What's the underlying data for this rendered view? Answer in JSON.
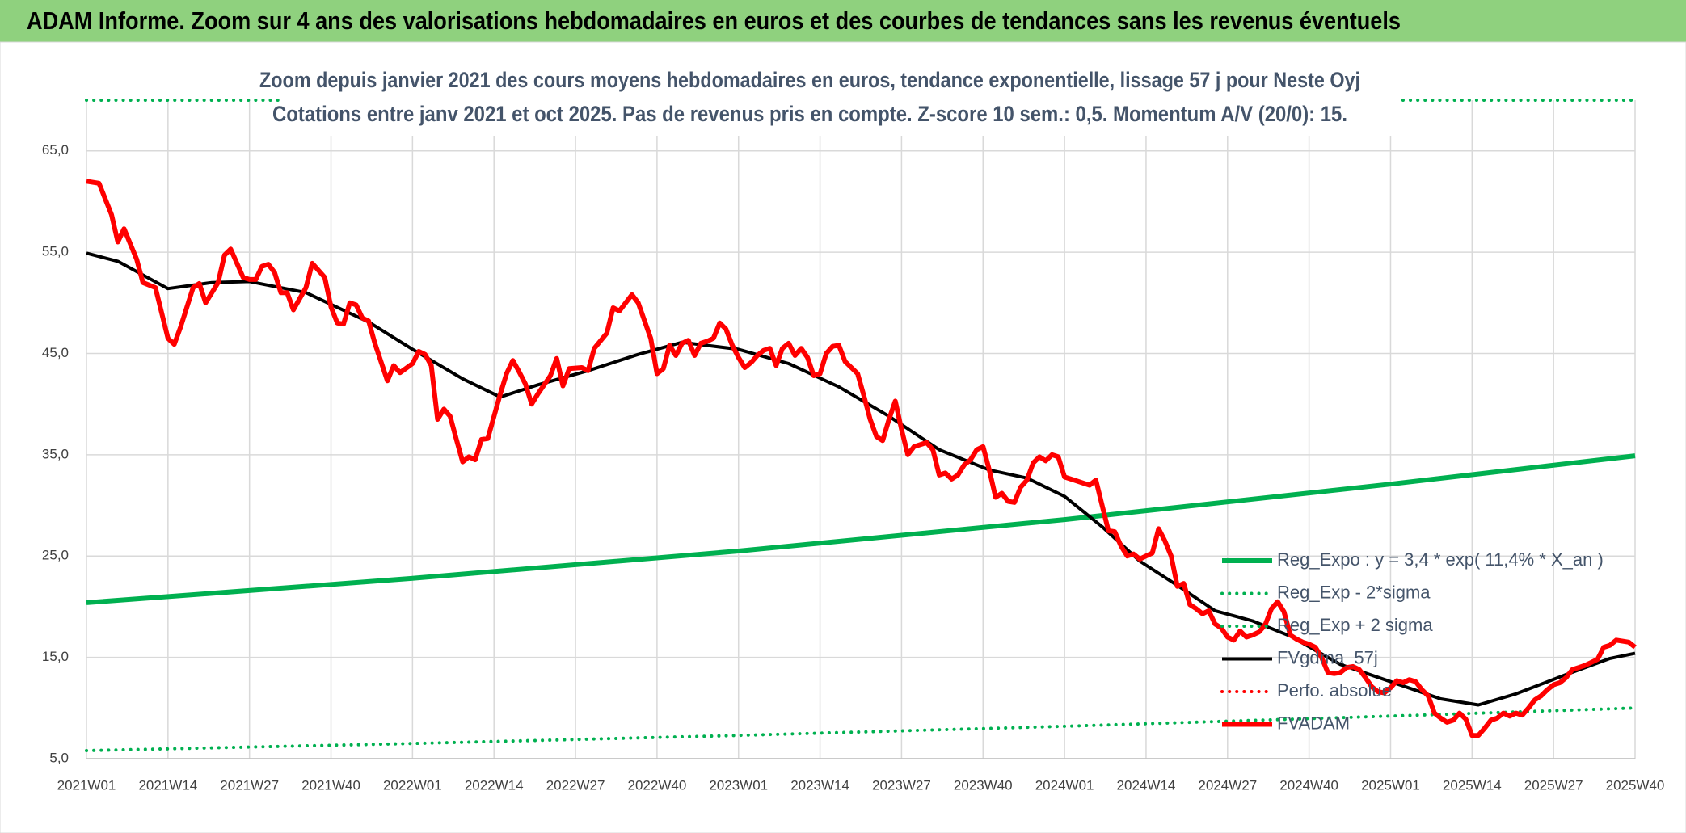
{
  "header": "ADAM Informe. Zoom sur 4 ans des valorisations hebdomadaires en euros et des courbes de tendances sans les revenus éventuels",
  "chart_data": {
    "type": "line",
    "title": "Zoom depuis janvier 2021 des cours moyens hebdomadaires en euros, tendance exponentielle, lissage 57 j pour Neste Oyj",
    "subtitle": "Cotations entre janv 2021 et oct 2025. Pas de revenus pris en compte. Z-score 10 sem.: 0,5. Momentum A/V (20/0): 15.",
    "xlim": [
      0,
      247
    ],
    "xticks": [
      {
        "value": 0,
        "label": "2021W01"
      },
      {
        "value": 13,
        "label": "2021W14"
      },
      {
        "value": 26,
        "label": "2021W27"
      },
      {
        "value": 39,
        "label": "2021W40"
      },
      {
        "value": 52,
        "label": "2022W01"
      },
      {
        "value": 65,
        "label": "2022W14"
      },
      {
        "value": 78,
        "label": "2022W27"
      },
      {
        "value": 91,
        "label": "2022W40"
      },
      {
        "value": 104,
        "label": "2023W01"
      },
      {
        "value": 117,
        "label": "2023W14"
      },
      {
        "value": 130,
        "label": "2023W27"
      },
      {
        "value": 143,
        "label": "2023W40"
      },
      {
        "value": 156,
        "label": "2024W01"
      },
      {
        "value": 169,
        "label": "2024W14"
      },
      {
        "value": 182,
        "label": "2024W27"
      },
      {
        "value": 195,
        "label": "2024W40"
      },
      {
        "value": 208,
        "label": "2025W01"
      },
      {
        "value": 221,
        "label": "2025W14"
      },
      {
        "value": 234,
        "label": "2025W27"
      },
      {
        "value": 247,
        "label": "2025W40"
      }
    ],
    "ylim": [
      5,
      70
    ],
    "yticks": [
      {
        "value": 5,
        "label": "5,0"
      },
      {
        "value": 15,
        "label": "15,0"
      },
      {
        "value": 25,
        "label": "25,0"
      },
      {
        "value": 35,
        "label": "35,0"
      },
      {
        "value": 45,
        "label": "45,0"
      },
      {
        "value": 55,
        "label": "55,0"
      },
      {
        "value": 65,
        "label": "65,0"
      }
    ],
    "grid": true,
    "legend": "right",
    "series": [
      {
        "name": "Reg_Expo : y = 3,4 * exp( 11,4% *  X_an )",
        "color": "#00b050",
        "line_style": "solid",
        "x": [
          0,
          52,
          104,
          156,
          208,
          247
        ],
        "values": [
          20.4,
          22.8,
          25.5,
          28.6,
          32.1,
          34.9
        ]
      },
      {
        "name": "Reg_Exp - 2*sigma",
        "color": "#00b050",
        "line_style": "dotted",
        "x": [
          0,
          52,
          104,
          156,
          208,
          247
        ],
        "values": [
          5.8,
          6.5,
          7.3,
          8.2,
          9.2,
          10.0
        ]
      },
      {
        "name": "Reg_Exp + 2 sigma",
        "color": "#00b050",
        "line_style": "dotted",
        "x": [
          0,
          247
        ],
        "values": [
          70,
          70
        ]
      },
      {
        "name": "FVgdma_57j",
        "color": "#000000",
        "line_style": "solid",
        "x": [
          0,
          5,
          13,
          20,
          26,
          35,
          45,
          52,
          60,
          66,
          72,
          80,
          88,
          95,
          104,
          112,
          120,
          128,
          136,
          144,
          150,
          156,
          162,
          168,
          174,
          180,
          186,
          192,
          200,
          208,
          216,
          222,
          228,
          236,
          243,
          247
        ],
        "values": [
          54.9,
          54.1,
          51.4,
          52.0,
          52.1,
          51.0,
          48.1,
          45.4,
          42.5,
          40.7,
          41.9,
          43.3,
          44.9,
          46.1,
          45.4,
          44.0,
          41.7,
          38.8,
          35.5,
          33.5,
          32.7,
          30.9,
          27.9,
          24.5,
          22.1,
          19.6,
          18.6,
          17.1,
          14.3,
          12.6,
          10.9,
          10.3,
          11.4,
          13.3,
          14.9,
          15.4
        ]
      },
      {
        "name": "Perfo. absolue",
        "color": "#ff0000",
        "line_style": "dotted",
        "x": [],
        "values": []
      },
      {
        "name": "FVADAM",
        "color": "#ff0000",
        "line_style": "solid",
        "x": [
          0,
          2,
          4,
          5,
          6,
          8,
          9,
          11,
          13,
          14,
          15,
          17,
          18,
          19,
          21,
          22,
          23,
          25,
          26,
          27,
          28,
          29,
          30,
          31,
          32,
          33,
          35,
          36,
          38,
          39,
          40,
          41,
          42,
          43,
          44,
          45,
          46,
          48,
          49,
          50,
          52,
          53,
          54,
          55,
          56,
          57,
          58,
          59,
          60,
          61,
          62,
          63,
          64,
          66,
          67,
          68,
          69,
          70,
          71,
          72,
          74,
          75,
          76,
          77,
          79,
          80,
          81,
          83,
          84,
          85,
          87,
          88,
          90,
          91,
          92,
          93,
          94,
          95,
          96,
          97,
          98,
          99,
          100,
          101,
          102,
          103,
          104,
          105,
          106,
          107,
          108,
          109,
          110,
          111,
          112,
          113,
          114,
          115,
          116,
          117,
          118,
          119,
          120,
          121,
          122,
          123,
          124,
          125,
          126,
          127,
          128,
          129,
          130,
          131,
          132,
          134,
          135,
          136,
          137,
          138,
          139,
          140,
          141,
          142,
          143,
          144,
          145,
          146,
          147,
          148,
          149,
          150,
          151,
          152,
          153,
          154,
          155,
          156,
          157,
          158,
          159,
          160,
          161,
          162,
          163,
          164,
          165,
          166,
          167,
          168,
          169,
          170,
          171,
          172,
          173,
          174,
          175,
          176,
          177,
          178,
          179,
          180,
          181,
          182,
          183,
          184,
          185,
          186,
          187,
          188,
          189,
          190,
          191,
          192,
          193,
          194,
          195,
          196,
          197,
          198,
          199,
          200,
          201,
          202,
          203,
          204,
          205,
          206,
          207,
          208,
          209,
          210,
          211,
          212,
          213,
          214,
          215,
          216,
          217,
          218,
          219,
          220,
          221,
          222,
          223,
          224,
          225,
          226,
          227,
          228,
          229,
          230,
          231,
          232,
          233,
          234,
          235,
          236,
          237,
          238,
          239,
          240,
          241,
          242,
          243,
          244,
          245,
          246,
          247
        ],
        "values": [
          62.0,
          61.8,
          58.7,
          56.0,
          57.3,
          54.3,
          52.0,
          51.5,
          46.5,
          45.9,
          47.6,
          51.5,
          51.9,
          50.0,
          52.0,
          54.7,
          55.3,
          52.5,
          52.3,
          52.3,
          53.6,
          53.8,
          53.0,
          51.0,
          51.0,
          49.3,
          51.5,
          53.9,
          52.5,
          49.6,
          48.0,
          47.9,
          50.0,
          49.8,
          48.5,
          48.2,
          46.0,
          42.3,
          43.8,
          43.1,
          44.0,
          45.2,
          44.9,
          43.8,
          38.5,
          39.5,
          38.8,
          36.5,
          34.3,
          34.8,
          34.5,
          36.5,
          36.6,
          41.0,
          43.0,
          44.3,
          43.2,
          42.0,
          40.0,
          41.0,
          42.8,
          44.5,
          41.8,
          43.5,
          43.6,
          43.3,
          45.5,
          47.0,
          49.5,
          49.2,
          50.8,
          50.0,
          46.5,
          43.0,
          43.5,
          45.8,
          44.8,
          46.0,
          46.3,
          44.8,
          46.0,
          46.2,
          46.5,
          48.0,
          47.4,
          45.8,
          44.6,
          43.6,
          44.1,
          44.8,
          45.3,
          45.5,
          43.8,
          45.5,
          46.0,
          44.8,
          45.5,
          44.6,
          42.8,
          43.0,
          45.0,
          45.7,
          45.8,
          44.2,
          43.6,
          43.0,
          40.8,
          38.5,
          36.8,
          36.4,
          38.5,
          40.3,
          37.5,
          35.0,
          35.8,
          36.2,
          35.5,
          33.0,
          33.2,
          32.6,
          33.0,
          34.0,
          34.5,
          35.5,
          35.8,
          33.5,
          30.8,
          31.2,
          30.4,
          30.3,
          31.8,
          32.5,
          34.2,
          34.8,
          34.4,
          35.0,
          34.8,
          32.8,
          32.6,
          32.4,
          32.2,
          32.0,
          32.5,
          30.0,
          27.5,
          27.4,
          26.0,
          25.0,
          25.2,
          24.7,
          25.0,
          25.3,
          27.7,
          26.5,
          25.0,
          22.0,
          22.3,
          20.2,
          19.8,
          19.3,
          19.6,
          18.3,
          17.9,
          17.0,
          16.7,
          17.6,
          17.0,
          17.2,
          17.5,
          18.2,
          19.8,
          20.5,
          19.5,
          17.2,
          16.8,
          16.5,
          16.3,
          16.0,
          15.0,
          13.5,
          13.4,
          13.5,
          14.0,
          14.1,
          13.8,
          13.0,
          12.1,
          11.6,
          11.5,
          12.0,
          12.7,
          12.5,
          12.8,
          12.6,
          11.8,
          11.2,
          9.5,
          9.0,
          8.6,
          8.8,
          9.5,
          8.9,
          7.3,
          7.3,
          8.0,
          8.8,
          9.0,
          9.5,
          9.2,
          9.5,
          9.3,
          10.0,
          10.8,
          11.2,
          11.8,
          12.3,
          12.5,
          13.0,
          13.8,
          14.0,
          14.2,
          14.5,
          14.8,
          16.0,
          16.2,
          16.7,
          16.6,
          16.5,
          16.0
        ]
      }
    ]
  }
}
